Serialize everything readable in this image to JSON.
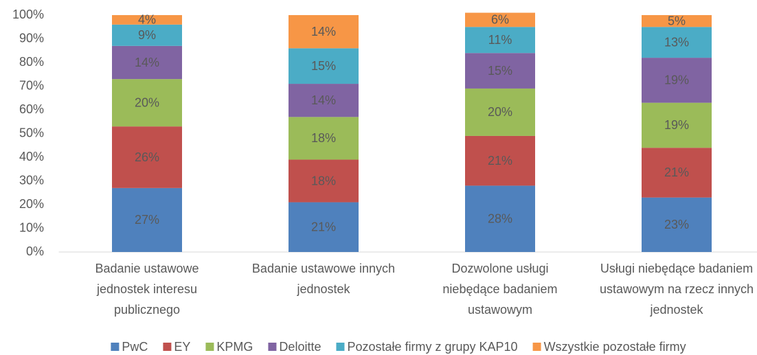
{
  "chart_data": {
    "type": "stacked_bar",
    "categories": [
      "Badanie ustawowe jednostek interesu publicznego",
      "Badanie ustawowe innych jednostek",
      "Dozwolone usługi niebędące badaniem ustawowym",
      "Usługi niebędące badaniem ustawowym na rzecz innych jednostek"
    ],
    "series": [
      {
        "name": "PwC",
        "color": "#4f81bd",
        "values": [
          27,
          21,
          28,
          23
        ],
        "value_labels": [
          "27%",
          "21%",
          "28%",
          "23%"
        ]
      },
      {
        "name": "EY",
        "color": "#c0504d",
        "values": [
          26,
          18,
          21,
          21
        ],
        "value_labels": [
          "26%",
          "18%",
          "21%",
          "21%"
        ]
      },
      {
        "name": "KPMG",
        "color": "#9bbb59",
        "values": [
          20,
          18,
          20,
          19
        ],
        "value_labels": [
          "20%",
          "18%",
          "20%",
          "19%"
        ]
      },
      {
        "name": "Deloitte",
        "color": "#8064a2",
        "values": [
          14,
          14,
          15,
          19
        ],
        "value_labels": [
          "14%",
          "14%",
          "15%",
          "19%"
        ]
      },
      {
        "name": "Pozostałe firmy z grupy KAP10",
        "color": "#4bacc6",
        "values": [
          9,
          15,
          11,
          13
        ],
        "value_labels": [
          "9%",
          "15%",
          "11%",
          "13%"
        ]
      },
      {
        "name": "Wszystkie pozostałe firmy",
        "color": "#f79646",
        "values": [
          4,
          14,
          6,
          5
        ],
        "value_labels": [
          "4%",
          "14%",
          "6%",
          "5%"
        ]
      }
    ],
    "ylim": [
      0,
      100
    ],
    "yticks": [
      {
        "value": 0,
        "label": "0%"
      },
      {
        "value": 10,
        "label": "10%"
      },
      {
        "value": 20,
        "label": "20%"
      },
      {
        "value": 30,
        "label": "30%"
      },
      {
        "value": 40,
        "label": "40%"
      },
      {
        "value": 50,
        "label": "50%"
      },
      {
        "value": 60,
        "label": "60%"
      },
      {
        "value": 70,
        "label": "70%"
      },
      {
        "value": 80,
        "label": "80%"
      },
      {
        "value": 90,
        "label": "90%"
      },
      {
        "value": 100,
        "label": "100%"
      }
    ],
    "grid": false,
    "legend": "bottom"
  }
}
